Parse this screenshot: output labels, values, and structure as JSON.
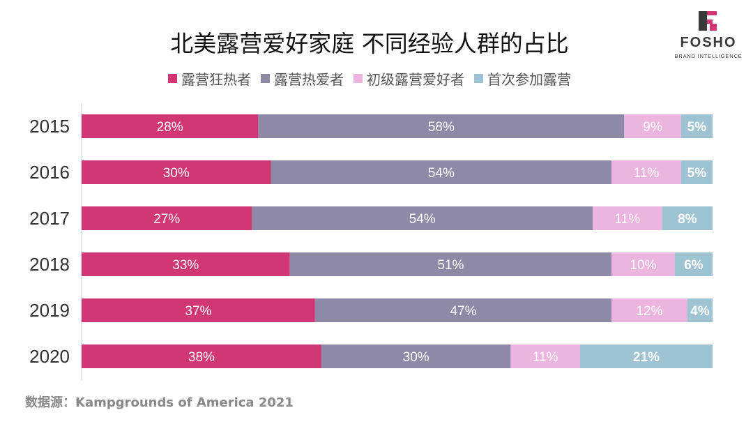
{
  "logo": {
    "text": "FOSHO",
    "tagline": "BRAND INTELLIGENCE",
    "colors": [
      "#3a3a3a",
      "#d13774"
    ]
  },
  "source": "数据源：Kampgrounds of America 2021",
  "chart_data": {
    "type": "bar",
    "orientation": "horizontal",
    "stacked": "percent",
    "title": "北美露营爱好家庭 不同经验人群的占比",
    "categories": [
      "2015",
      "2016",
      "2017",
      "2018",
      "2019",
      "2020"
    ],
    "series": [
      {
        "name": "露营狂热者",
        "color": "#d13774",
        "values": [
          28,
          30,
          27,
          33,
          37,
          38
        ],
        "label_bold": false
      },
      {
        "name": "露营热爱者",
        "color": "#8f89a8",
        "values": [
          58,
          54,
          54,
          51,
          47,
          30
        ],
        "label_bold": false
      },
      {
        "name": "初级露营爱好者",
        "color": "#ebb5e0",
        "values": [
          9,
          11,
          11,
          10,
          12,
          11
        ],
        "label_bold": false
      },
      {
        "name": "首次参加露营",
        "color": "#9ec3d2",
        "values": [
          5,
          5,
          8,
          6,
          4,
          21
        ],
        "label_bold": true
      }
    ],
    "value_format": "{v}%",
    "xlim": [
      0,
      100
    ],
    "legend": "top",
    "grid": false
  }
}
